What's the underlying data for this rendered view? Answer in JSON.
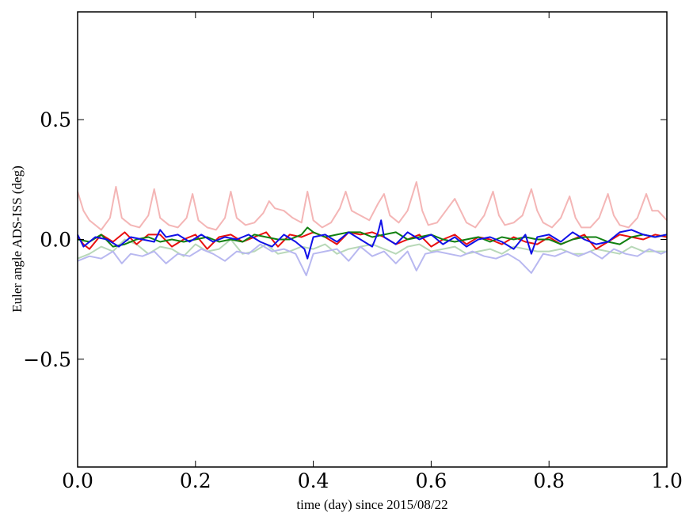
{
  "chart_data": {
    "type": "line",
    "xlabel": "time (day) since 2015/08/22",
    "ylabel": "Euler angle ADS-ISS (deg)",
    "xlim": [
      0.0,
      1.0
    ],
    "ylim": [
      -0.95,
      0.95
    ],
    "xticks": [
      0.0,
      0.2,
      0.4,
      0.6,
      0.8,
      1.0
    ],
    "xtick_labels": [
      "0.0",
      "0.2",
      "0.4",
      "0.6",
      "0.8",
      "1.0"
    ],
    "yticks": [
      -0.5,
      0.0,
      0.5
    ],
    "ytick_labels": [
      "−0.5",
      "0.0",
      "0.5"
    ],
    "grid": false,
    "series": [
      {
        "color": "#f4b6b6",
        "x": [
          0.0,
          0.01,
          0.02,
          0.04,
          0.055,
          0.065,
          0.075,
          0.09,
          0.105,
          0.12,
          0.13,
          0.14,
          0.155,
          0.17,
          0.185,
          0.195,
          0.205,
          0.22,
          0.235,
          0.25,
          0.26,
          0.27,
          0.285,
          0.3,
          0.315,
          0.325,
          0.335,
          0.35,
          0.365,
          0.38,
          0.39,
          0.4,
          0.415,
          0.43,
          0.445,
          0.455,
          0.465,
          0.48,
          0.495,
          0.51,
          0.52,
          0.53,
          0.545,
          0.56,
          0.575,
          0.585,
          0.595,
          0.61,
          0.625,
          0.64,
          0.65,
          0.66,
          0.675,
          0.69,
          0.705,
          0.715,
          0.725,
          0.74,
          0.755,
          0.77,
          0.78,
          0.79,
          0.805,
          0.82,
          0.835,
          0.845,
          0.855,
          0.87,
          0.885,
          0.9,
          0.91,
          0.92,
          0.935,
          0.95,
          0.965,
          0.975,
          0.985,
          1.0
        ],
        "values": [
          0.2,
          0.12,
          0.08,
          0.04,
          0.09,
          0.22,
          0.09,
          0.06,
          0.05,
          0.1,
          0.21,
          0.09,
          0.06,
          0.05,
          0.09,
          0.19,
          0.08,
          0.05,
          0.04,
          0.09,
          0.2,
          0.09,
          0.06,
          0.07,
          0.11,
          0.16,
          0.13,
          0.12,
          0.09,
          0.07,
          0.2,
          0.08,
          0.05,
          0.07,
          0.13,
          0.2,
          0.12,
          0.1,
          0.08,
          0.15,
          0.19,
          0.1,
          0.07,
          0.12,
          0.24,
          0.12,
          0.06,
          0.07,
          0.12,
          0.17,
          0.12,
          0.07,
          0.05,
          0.1,
          0.2,
          0.1,
          0.06,
          0.07,
          0.1,
          0.21,
          0.12,
          0.07,
          0.05,
          0.09,
          0.18,
          0.09,
          0.05,
          0.05,
          0.09,
          0.19,
          0.1,
          0.06,
          0.05,
          0.09,
          0.19,
          0.12,
          0.12,
          0.08
        ]
      },
      {
        "color": "#b8d8b8",
        "x": [
          0.0,
          0.02,
          0.04,
          0.06,
          0.08,
          0.1,
          0.12,
          0.14,
          0.16,
          0.18,
          0.2,
          0.22,
          0.24,
          0.26,
          0.28,
          0.3,
          0.32,
          0.34,
          0.36,
          0.38,
          0.4,
          0.42,
          0.44,
          0.46,
          0.48,
          0.5,
          0.52,
          0.54,
          0.56,
          0.58,
          0.6,
          0.62,
          0.64,
          0.66,
          0.68,
          0.7,
          0.72,
          0.74,
          0.76,
          0.78,
          0.8,
          0.82,
          0.84,
          0.86,
          0.88,
          0.9,
          0.92,
          0.94,
          0.96,
          0.98,
          1.0
        ],
        "values": [
          -0.08,
          -0.06,
          -0.03,
          -0.05,
          0.0,
          -0.02,
          -0.06,
          -0.03,
          -0.04,
          -0.07,
          -0.02,
          -0.05,
          -0.04,
          0.0,
          -0.06,
          -0.05,
          -0.02,
          -0.06,
          -0.05,
          -0.03,
          -0.04,
          -0.02,
          -0.06,
          -0.04,
          -0.03,
          -0.02,
          -0.04,
          -0.06,
          -0.03,
          -0.02,
          -0.05,
          -0.04,
          -0.03,
          -0.06,
          -0.05,
          -0.04,
          -0.06,
          -0.03,
          -0.04,
          -0.05,
          -0.05,
          -0.04,
          -0.06,
          -0.06,
          -0.04,
          -0.05,
          -0.06,
          -0.03,
          -0.05,
          -0.05,
          -0.05
        ]
      },
      {
        "color": "#b8b8f0",
        "x": [
          0.0,
          0.02,
          0.04,
          0.06,
          0.075,
          0.09,
          0.11,
          0.13,
          0.15,
          0.17,
          0.19,
          0.21,
          0.23,
          0.25,
          0.27,
          0.29,
          0.31,
          0.33,
          0.35,
          0.37,
          0.388,
          0.4,
          0.42,
          0.44,
          0.46,
          0.48,
          0.5,
          0.52,
          0.54,
          0.56,
          0.575,
          0.59,
          0.61,
          0.63,
          0.65,
          0.67,
          0.69,
          0.71,
          0.73,
          0.75,
          0.77,
          0.79,
          0.81,
          0.83,
          0.85,
          0.87,
          0.89,
          0.91,
          0.93,
          0.95,
          0.97,
          0.99,
          1.0
        ],
        "values": [
          -0.09,
          -0.07,
          -0.08,
          -0.05,
          -0.1,
          -0.06,
          -0.07,
          -0.05,
          -0.1,
          -0.06,
          -0.07,
          -0.04,
          -0.06,
          -0.09,
          -0.05,
          -0.06,
          -0.02,
          -0.05,
          -0.04,
          -0.06,
          -0.15,
          -0.06,
          -0.05,
          -0.04,
          -0.09,
          -0.03,
          -0.07,
          -0.05,
          -0.1,
          -0.05,
          -0.13,
          -0.06,
          -0.05,
          -0.06,
          -0.07,
          -0.05,
          -0.07,
          -0.08,
          -0.06,
          -0.09,
          -0.14,
          -0.06,
          -0.07,
          -0.05,
          -0.07,
          -0.05,
          -0.08,
          -0.04,
          -0.06,
          -0.07,
          -0.04,
          -0.06,
          -0.05
        ]
      },
      {
        "color": "#e81010",
        "x": [
          0.0,
          0.01,
          0.02,
          0.04,
          0.06,
          0.08,
          0.1,
          0.12,
          0.14,
          0.16,
          0.18,
          0.2,
          0.22,
          0.24,
          0.26,
          0.28,
          0.3,
          0.32,
          0.34,
          0.36,
          0.38,
          0.4,
          0.42,
          0.44,
          0.46,
          0.48,
          0.5,
          0.52,
          0.54,
          0.56,
          0.58,
          0.6,
          0.62,
          0.64,
          0.66,
          0.68,
          0.7,
          0.72,
          0.74,
          0.76,
          0.78,
          0.8,
          0.82,
          0.84,
          0.86,
          0.88,
          0.9,
          0.92,
          0.94,
          0.96,
          0.98,
          1.0
        ],
        "values": [
          0.01,
          -0.02,
          -0.04,
          0.02,
          -0.01,
          0.03,
          -0.02,
          0.02,
          0.02,
          -0.03,
          0.0,
          0.02,
          -0.04,
          0.01,
          0.02,
          -0.01,
          0.01,
          0.03,
          -0.03,
          0.02,
          0.01,
          0.03,
          0.01,
          -0.02,
          0.03,
          0.02,
          0.03,
          0.01,
          -0.02,
          0.0,
          0.02,
          -0.03,
          0.0,
          0.02,
          -0.02,
          0.01,
          0.0,
          -0.02,
          0.01,
          -0.01,
          -0.02,
          0.01,
          -0.02,
          0.0,
          0.02,
          -0.04,
          -0.01,
          0.02,
          0.01,
          0.0,
          0.02,
          0.01
        ]
      },
      {
        "color": "#108010",
        "x": [
          0.0,
          0.02,
          0.04,
          0.06,
          0.08,
          0.1,
          0.12,
          0.14,
          0.16,
          0.18,
          0.2,
          0.22,
          0.24,
          0.26,
          0.28,
          0.3,
          0.32,
          0.34,
          0.36,
          0.38,
          0.39,
          0.4,
          0.42,
          0.44,
          0.46,
          0.48,
          0.5,
          0.52,
          0.54,
          0.56,
          0.58,
          0.6,
          0.62,
          0.64,
          0.66,
          0.68,
          0.7,
          0.72,
          0.74,
          0.76,
          0.78,
          0.8,
          0.82,
          0.84,
          0.86,
          0.88,
          0.9,
          0.92,
          0.94,
          0.96,
          0.98,
          1.0
        ],
        "values": [
          0.0,
          -0.01,
          0.02,
          -0.03,
          -0.02,
          0.0,
          0.01,
          -0.01,
          0.0,
          -0.01,
          0.0,
          0.01,
          -0.01,
          0.0,
          -0.01,
          0.02,
          0.01,
          0.0,
          0.0,
          0.02,
          0.05,
          0.03,
          0.01,
          0.02,
          0.03,
          0.03,
          0.01,
          0.02,
          0.03,
          0.0,
          0.01,
          0.02,
          0.0,
          -0.01,
          0.0,
          0.01,
          -0.01,
          0.01,
          0.0,
          0.01,
          0.0,
          0.0,
          -0.02,
          0.0,
          0.01,
          0.01,
          -0.01,
          -0.02,
          0.01,
          0.02,
          0.01,
          0.02
        ]
      },
      {
        "color": "#1010e8",
        "x": [
          0.0,
          0.01,
          0.03,
          0.05,
          0.07,
          0.09,
          0.11,
          0.13,
          0.14,
          0.15,
          0.17,
          0.19,
          0.21,
          0.23,
          0.25,
          0.27,
          0.29,
          0.31,
          0.33,
          0.35,
          0.37,
          0.385,
          0.39,
          0.4,
          0.42,
          0.44,
          0.46,
          0.48,
          0.5,
          0.51,
          0.515,
          0.52,
          0.54,
          0.56,
          0.58,
          0.6,
          0.62,
          0.64,
          0.66,
          0.68,
          0.7,
          0.72,
          0.74,
          0.76,
          0.77,
          0.78,
          0.8,
          0.82,
          0.84,
          0.86,
          0.88,
          0.9,
          0.92,
          0.94,
          0.96,
          0.98,
          1.0
        ],
        "values": [
          0.02,
          -0.03,
          0.01,
          0.0,
          -0.03,
          0.01,
          0.0,
          -0.01,
          0.04,
          0.01,
          0.02,
          -0.01,
          0.02,
          -0.01,
          0.01,
          0.0,
          0.02,
          -0.01,
          -0.03,
          0.02,
          -0.01,
          -0.04,
          -0.08,
          0.01,
          0.02,
          -0.01,
          0.03,
          0.0,
          -0.03,
          0.03,
          0.08,
          0.01,
          -0.02,
          0.03,
          0.0,
          0.02,
          -0.02,
          0.01,
          -0.03,
          0.0,
          0.01,
          -0.01,
          -0.04,
          0.02,
          -0.06,
          0.01,
          0.02,
          -0.01,
          0.03,
          0.0,
          -0.02,
          -0.01,
          0.03,
          0.04,
          0.02,
          0.01,
          0.02
        ]
      }
    ]
  }
}
